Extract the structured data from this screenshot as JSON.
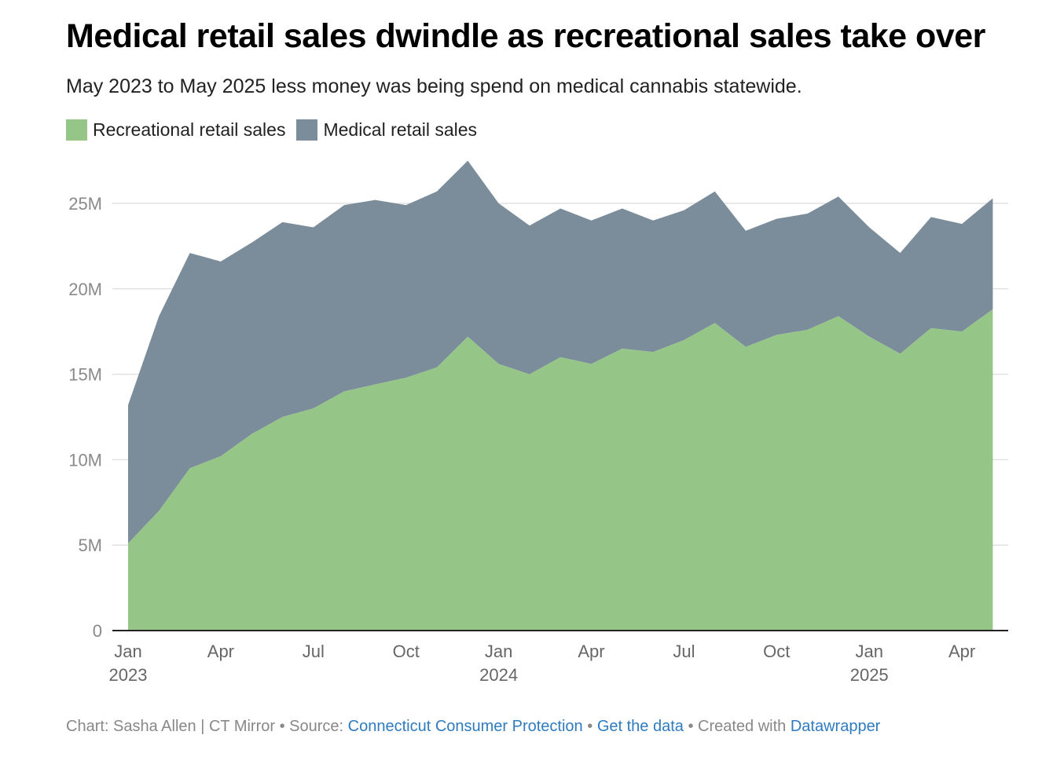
{
  "title": "Medical retail sales dwindle as recreational sales take over",
  "subtitle": "May 2023 to May 2025 less money was being spend on medical cannabis statewide.",
  "colors": {
    "recreational": "#96c588",
    "medical": "#7b8d9b",
    "grid": "#e2e2e2",
    "axis": "#222222",
    "link": "#2f7bbf"
  },
  "footer": {
    "credit": "Chart: Sasha Allen | CT Mirror",
    "sep1": " • Source: ",
    "source": "Connecticut Consumer Protection",
    "sep2": " • ",
    "data_link": "Get the data",
    "sep3": " • Created with ",
    "tool": "Datawrapper"
  },
  "chart_data": {
    "type": "area",
    "stacked": true,
    "legend_position": "top-left",
    "grid": true,
    "ylim": [
      0,
      27.5
    ],
    "y_unit": "M",
    "y_ticks": [
      0,
      5,
      10,
      15,
      20,
      25
    ],
    "y_tick_labels": [
      "0",
      "5M",
      "10M",
      "15M",
      "20M",
      "25M"
    ],
    "x_tick_labels": [
      {
        "month_index": 0,
        "line1": "Jan",
        "line2": "2023"
      },
      {
        "month_index": 3,
        "line1": "Apr",
        "line2": ""
      },
      {
        "month_index": 6,
        "line1": "Jul",
        "line2": ""
      },
      {
        "month_index": 9,
        "line1": "Oct",
        "line2": ""
      },
      {
        "month_index": 12,
        "line1": "Jan",
        "line2": "2024"
      },
      {
        "month_index": 15,
        "line1": "Apr",
        "line2": ""
      },
      {
        "month_index": 18,
        "line1": "Jul",
        "line2": ""
      },
      {
        "month_index": 21,
        "line1": "Oct",
        "line2": ""
      },
      {
        "month_index": 24,
        "line1": "Jan",
        "line2": "2025"
      },
      {
        "month_index": 27,
        "line1": "Apr",
        "line2": ""
      }
    ],
    "x": [
      "2023-01",
      "2023-02",
      "2023-03",
      "2023-04",
      "2023-05",
      "2023-06",
      "2023-07",
      "2023-08",
      "2023-09",
      "2023-10",
      "2023-11",
      "2023-12",
      "2024-01",
      "2024-02",
      "2024-03",
      "2024-04",
      "2024-05",
      "2024-06",
      "2024-07",
      "2024-08",
      "2024-09",
      "2024-10",
      "2024-11",
      "2024-12",
      "2025-01",
      "2025-02",
      "2025-03",
      "2025-04",
      "2025-05"
    ],
    "series": [
      {
        "name": "Recreational retail sales",
        "color": "#96c588",
        "values": [
          5.1,
          7.0,
          9.5,
          10.2,
          11.5,
          12.5,
          13.0,
          14.0,
          14.4,
          14.8,
          15.4,
          17.2,
          15.6,
          15.0,
          16.0,
          15.6,
          16.5,
          16.3,
          17.0,
          18.0,
          16.6,
          17.3,
          17.6,
          18.4,
          17.2,
          16.2,
          17.7,
          17.5,
          18.8
        ]
      },
      {
        "name": "Medical retail sales",
        "color": "#7b8d9b",
        "values": [
          8.1,
          11.4,
          12.6,
          11.4,
          11.2,
          11.4,
          10.6,
          10.9,
          10.8,
          10.1,
          10.3,
          10.3,
          9.4,
          8.7,
          8.7,
          8.4,
          8.2,
          7.7,
          7.6,
          7.7,
          6.8,
          6.8,
          6.8,
          7.0,
          6.4,
          5.9,
          6.5,
          6.3,
          6.5
        ]
      }
    ]
  }
}
